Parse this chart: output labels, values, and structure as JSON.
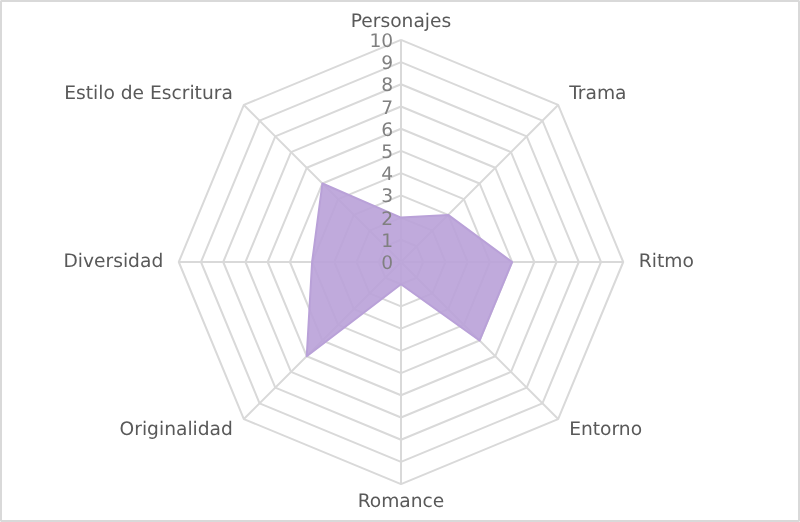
{
  "chart_data": {
    "type": "radar",
    "categories": [
      "Personajes",
      "Trama",
      "Ritmo",
      "Entorno",
      "Romance",
      "Originalidad",
      "Diversidad",
      "Estilo de Escritura"
    ],
    "series": [
      {
        "color": "#b9a1d8",
        "values": [
          2,
          3,
          5,
          5,
          1,
          6,
          4,
          5
        ]
      }
    ],
    "ylim": [
      0,
      10
    ],
    "yticks": [
      0,
      1,
      2,
      3,
      4,
      5,
      6,
      7,
      8,
      9,
      10
    ],
    "grid": true
  }
}
